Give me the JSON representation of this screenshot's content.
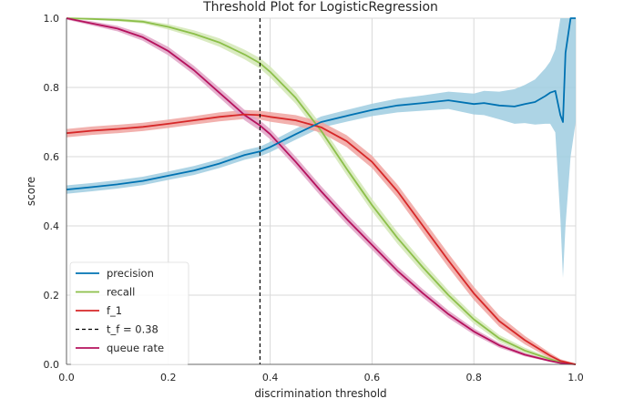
{
  "chart_data": {
    "type": "line",
    "title": "Threshold Plot for LogisticRegression",
    "xlabel": "discrimination threshold",
    "ylabel": "score",
    "xlim": [
      0.0,
      1.0
    ],
    "ylim": [
      0.0,
      1.0
    ],
    "x_ticks": [
      "0.0",
      "0.2",
      "0.4",
      "0.6",
      "0.8",
      "1.0"
    ],
    "y_ticks": [
      "0.0",
      "0.2",
      "0.4",
      "0.6",
      "0.8",
      "1.0"
    ],
    "grid": true,
    "legend_position": "lower-left",
    "threshold_line": {
      "label": "t_f = 0.38",
      "x": 0.38,
      "color": "#000000",
      "style": "dashed"
    },
    "series": [
      {
        "name": "precision",
        "color": "#0072b2",
        "band_color": "#9fcde0",
        "x": [
          0.0,
          0.05,
          0.1,
          0.15,
          0.2,
          0.25,
          0.3,
          0.35,
          0.38,
          0.4,
          0.45,
          0.5,
          0.55,
          0.6,
          0.65,
          0.7,
          0.75,
          0.8,
          0.82,
          0.85,
          0.88,
          0.9,
          0.92,
          0.94,
          0.95,
          0.96,
          0.97,
          0.975,
          0.98,
          0.99,
          1.0
        ],
        "y": [
          0.505,
          0.512,
          0.52,
          0.53,
          0.545,
          0.56,
          0.58,
          0.605,
          0.615,
          0.628,
          0.665,
          0.7,
          0.718,
          0.735,
          0.748,
          0.755,
          0.763,
          0.752,
          0.755,
          0.748,
          0.745,
          0.752,
          0.758,
          0.775,
          0.785,
          0.79,
          0.72,
          0.7,
          0.9,
          1.0,
          1.0
        ],
        "band": [
          0.012,
          0.012,
          0.012,
          0.012,
          0.012,
          0.013,
          0.013,
          0.014,
          0.014,
          0.015,
          0.016,
          0.016,
          0.017,
          0.018,
          0.02,
          0.022,
          0.025,
          0.03,
          0.035,
          0.04,
          0.05,
          0.055,
          0.065,
          0.08,
          0.09,
          0.12,
          0.3,
          0.45,
          0.5,
          0.4,
          0.3
        ]
      },
      {
        "name": "recall",
        "color": "#8cbf4a",
        "band_color": "#d3e8b6",
        "x": [
          0.0,
          0.05,
          0.1,
          0.15,
          0.2,
          0.25,
          0.3,
          0.35,
          0.38,
          0.4,
          0.45,
          0.5,
          0.55,
          0.6,
          0.65,
          0.7,
          0.75,
          0.8,
          0.85,
          0.9,
          0.95,
          0.97,
          1.0
        ],
        "y": [
          1.0,
          0.998,
          0.995,
          0.99,
          0.975,
          0.955,
          0.93,
          0.895,
          0.87,
          0.845,
          0.77,
          0.675,
          0.565,
          0.46,
          0.365,
          0.28,
          0.2,
          0.13,
          0.075,
          0.04,
          0.015,
          0.006,
          0.0
        ],
        "band": [
          0.002,
          0.003,
          0.004,
          0.005,
          0.008,
          0.01,
          0.012,
          0.014,
          0.015,
          0.016,
          0.017,
          0.018,
          0.018,
          0.018,
          0.017,
          0.016,
          0.014,
          0.012,
          0.01,
          0.008,
          0.005,
          0.004,
          0.002
        ]
      },
      {
        "name": "f_1",
        "color": "#d62728",
        "band_color": "#f0a3a0",
        "x": [
          0.0,
          0.05,
          0.1,
          0.15,
          0.2,
          0.25,
          0.3,
          0.35,
          0.38,
          0.4,
          0.45,
          0.5,
          0.55,
          0.6,
          0.65,
          0.7,
          0.75,
          0.8,
          0.85,
          0.9,
          0.95,
          0.97,
          1.0
        ],
        "y": [
          0.668,
          0.675,
          0.68,
          0.686,
          0.695,
          0.705,
          0.715,
          0.722,
          0.72,
          0.715,
          0.705,
          0.685,
          0.645,
          0.585,
          0.5,
          0.4,
          0.3,
          0.205,
          0.125,
          0.07,
          0.025,
          0.01,
          0.0
        ],
        "band": [
          0.012,
          0.012,
          0.012,
          0.012,
          0.012,
          0.012,
          0.013,
          0.013,
          0.013,
          0.014,
          0.015,
          0.016,
          0.017,
          0.018,
          0.019,
          0.02,
          0.02,
          0.019,
          0.016,
          0.012,
          0.008,
          0.005,
          0.002
        ]
      },
      {
        "name": "queue rate",
        "color": "#b5125d",
        "band_color": "#e0a3c6",
        "x": [
          0.0,
          0.05,
          0.1,
          0.15,
          0.2,
          0.25,
          0.3,
          0.35,
          0.38,
          0.4,
          0.45,
          0.5,
          0.55,
          0.6,
          0.65,
          0.7,
          0.75,
          0.8,
          0.85,
          0.9,
          0.95,
          0.97,
          1.0
        ],
        "y": [
          1.0,
          0.985,
          0.97,
          0.945,
          0.905,
          0.85,
          0.785,
          0.72,
          0.69,
          0.665,
          0.585,
          0.5,
          0.42,
          0.345,
          0.27,
          0.205,
          0.145,
          0.095,
          0.055,
          0.028,
          0.01,
          0.004,
          0.0
        ],
        "band": [
          0.004,
          0.006,
          0.008,
          0.01,
          0.012,
          0.013,
          0.014,
          0.015,
          0.015,
          0.015,
          0.015,
          0.015,
          0.015,
          0.014,
          0.013,
          0.012,
          0.011,
          0.009,
          0.007,
          0.005,
          0.003,
          0.002,
          0.001
        ]
      }
    ],
    "legend": [
      {
        "label": "precision",
        "color": "#0072b2",
        "style": "solid"
      },
      {
        "label": "recall",
        "color": "#8cbf4a",
        "style": "solid"
      },
      {
        "label": "f_1",
        "color": "#d62728",
        "style": "solid"
      },
      {
        "label": "t_f = 0.38",
        "color": "#000000",
        "style": "dashed"
      },
      {
        "label": "queue rate",
        "color": "#b5125d",
        "style": "solid"
      }
    ]
  }
}
